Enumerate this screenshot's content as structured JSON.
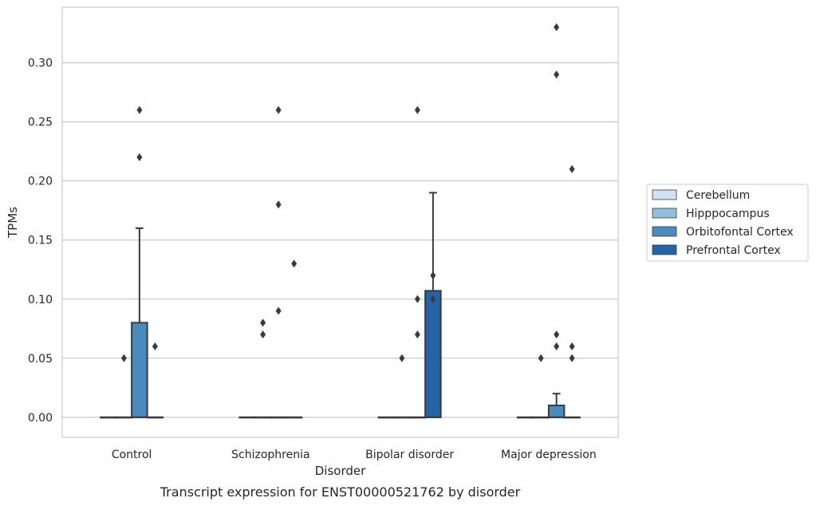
{
  "chart_data": {
    "type": "box",
    "caption": "Transcript expression for ENST00000521762 by disorder",
    "xlabel": "Disorder",
    "ylabel": "TPMs",
    "categories": [
      "Control",
      "Schizophrenia",
      "Bipolar disorder",
      "Major depression"
    ],
    "ylim": [
      -0.017,
      0.347
    ],
    "yticks": [
      0.0,
      0.05,
      0.1,
      0.15,
      0.2,
      0.25,
      0.3
    ],
    "ytick_labels": [
      "0.00",
      "0.05",
      "0.10",
      "0.15",
      "0.20",
      "0.25",
      "0.30"
    ],
    "grid": true,
    "legend_position": "outside-right",
    "series": [
      {
        "name": "Cerebellum",
        "color": "#d0e1f0",
        "boxes": [
          {
            "q1": 0,
            "median": 0,
            "q3": 0,
            "whisker_low": 0,
            "whisker_high": 0,
            "outliers": []
          },
          {
            "q1": 0,
            "median": 0,
            "q3": 0,
            "whisker_low": 0,
            "whisker_high": 0,
            "outliers": []
          },
          {
            "q1": 0,
            "median": 0,
            "q3": 0,
            "whisker_low": 0,
            "whisker_high": 0,
            "outliers": []
          },
          {
            "q1": 0,
            "median": 0,
            "q3": 0,
            "whisker_low": 0,
            "whisker_high": 0,
            "outliers": []
          }
        ]
      },
      {
        "name": "Hipppocampus",
        "color": "#94bfdb",
        "boxes": [
          {
            "q1": 0,
            "median": 0,
            "q3": 0,
            "whisker_low": 0,
            "whisker_high": 0,
            "outliers": [
              0.05
            ]
          },
          {
            "q1": 0,
            "median": 0,
            "q3": 0,
            "whisker_low": 0,
            "whisker_high": 0,
            "outliers": [
              0.07,
              0.08
            ]
          },
          {
            "q1": 0,
            "median": 0,
            "q3": 0,
            "whisker_low": 0,
            "whisker_high": 0,
            "outliers": [
              0.05
            ]
          },
          {
            "q1": 0,
            "median": 0,
            "q3": 0,
            "whisker_low": 0,
            "whisker_high": 0,
            "outliers": [
              0.05
            ]
          }
        ]
      },
      {
        "name": "Orbitofontal Cortex",
        "color": "#4a8bbf",
        "boxes": [
          {
            "q1": 0,
            "median": 0,
            "q3": 0.08,
            "whisker_low": 0,
            "whisker_high": 0.16,
            "outliers": [
              0.22,
              0.26
            ]
          },
          {
            "q1": 0,
            "median": 0,
            "q3": 0,
            "whisker_low": 0,
            "whisker_high": 0,
            "outliers": [
              0.09,
              0.18,
              0.26
            ]
          },
          {
            "q1": 0,
            "median": 0,
            "q3": 0,
            "whisker_low": 0,
            "whisker_high": 0,
            "outliers": [
              0.07,
              0.1,
              0.26
            ]
          },
          {
            "q1": 0,
            "median": 0,
            "q3": 0.01,
            "whisker_low": 0,
            "whisker_high": 0.02,
            "outliers": [
              0.06,
              0.07,
              0.29,
              0.33
            ]
          }
        ]
      },
      {
        "name": "Prefrontal Cortex",
        "color": "#2464a6",
        "boxes": [
          {
            "q1": 0,
            "median": 0,
            "q3": 0,
            "whisker_low": 0,
            "whisker_high": 0,
            "outliers": [
              0.06
            ]
          },
          {
            "q1": 0,
            "median": 0,
            "q3": 0,
            "whisker_low": 0,
            "whisker_high": 0,
            "outliers": [
              0.13
            ]
          },
          {
            "q1": 0,
            "median": 0,
            "q3": 0.107,
            "whisker_low": 0,
            "whisker_high": 0.19,
            "outliers": [
              0.1,
              0.12
            ]
          },
          {
            "q1": 0,
            "median": 0,
            "q3": 0,
            "whisker_low": 0,
            "whisker_high": 0,
            "outliers": [
              0.05,
              0.06,
              0.21
            ]
          }
        ]
      }
    ]
  }
}
